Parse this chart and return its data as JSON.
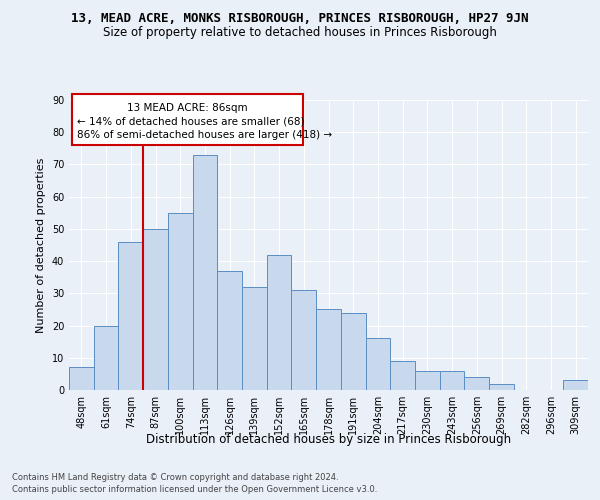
{
  "title_line1": "13, MEAD ACRE, MONKS RISBOROUGH, PRINCES RISBOROUGH, HP27 9JN",
  "title_line2": "Size of property relative to detached houses in Princes Risborough",
  "xlabel": "Distribution of detached houses by size in Princes Risborough",
  "ylabel": "Number of detached properties",
  "footer_line1": "Contains HM Land Registry data © Crown copyright and database right 2024.",
  "footer_line2": "Contains public sector information licensed under the Open Government Licence v3.0.",
  "annotation_line1": "13 MEAD ACRE: 86sqm",
  "annotation_line2": "← 14% of detached houses are smaller (68)",
  "annotation_line3": "86% of semi-detached houses are larger (418) →",
  "categories": [
    "48sqm",
    "61sqm",
    "74sqm",
    "87sqm",
    "100sqm",
    "113sqm",
    "126sqm",
    "139sqm",
    "152sqm",
    "165sqm",
    "178sqm",
    "191sqm",
    "204sqm",
    "217sqm",
    "230sqm",
    "243sqm",
    "256sqm",
    "269sqm",
    "282sqm",
    "296sqm",
    "309sqm"
  ],
  "values": [
    7,
    20,
    46,
    50,
    55,
    73,
    37,
    32,
    42,
    31,
    25,
    24,
    16,
    9,
    6,
    6,
    4,
    2,
    0,
    0,
    3
  ],
  "bar_color": "#c9d9ed",
  "bar_edge_color": "#5b8ec4",
  "vline_color": "#cc0000",
  "ylim": [
    0,
    90
  ],
  "yticks": [
    0,
    10,
    20,
    30,
    40,
    50,
    60,
    70,
    80,
    90
  ],
  "bg_color": "#eaf0f8",
  "plot_bg_color": "#eaf0f8",
  "grid_color": "#ffffff",
  "annotation_box_color": "#cc0000",
  "title_fontsize": 9,
  "subtitle_fontsize": 8.5,
  "ylabel_fontsize": 8,
  "xlabel_fontsize": 8.5,
  "tick_fontsize": 7,
  "annotation_fontsize": 7.5,
  "footer_fontsize": 6
}
